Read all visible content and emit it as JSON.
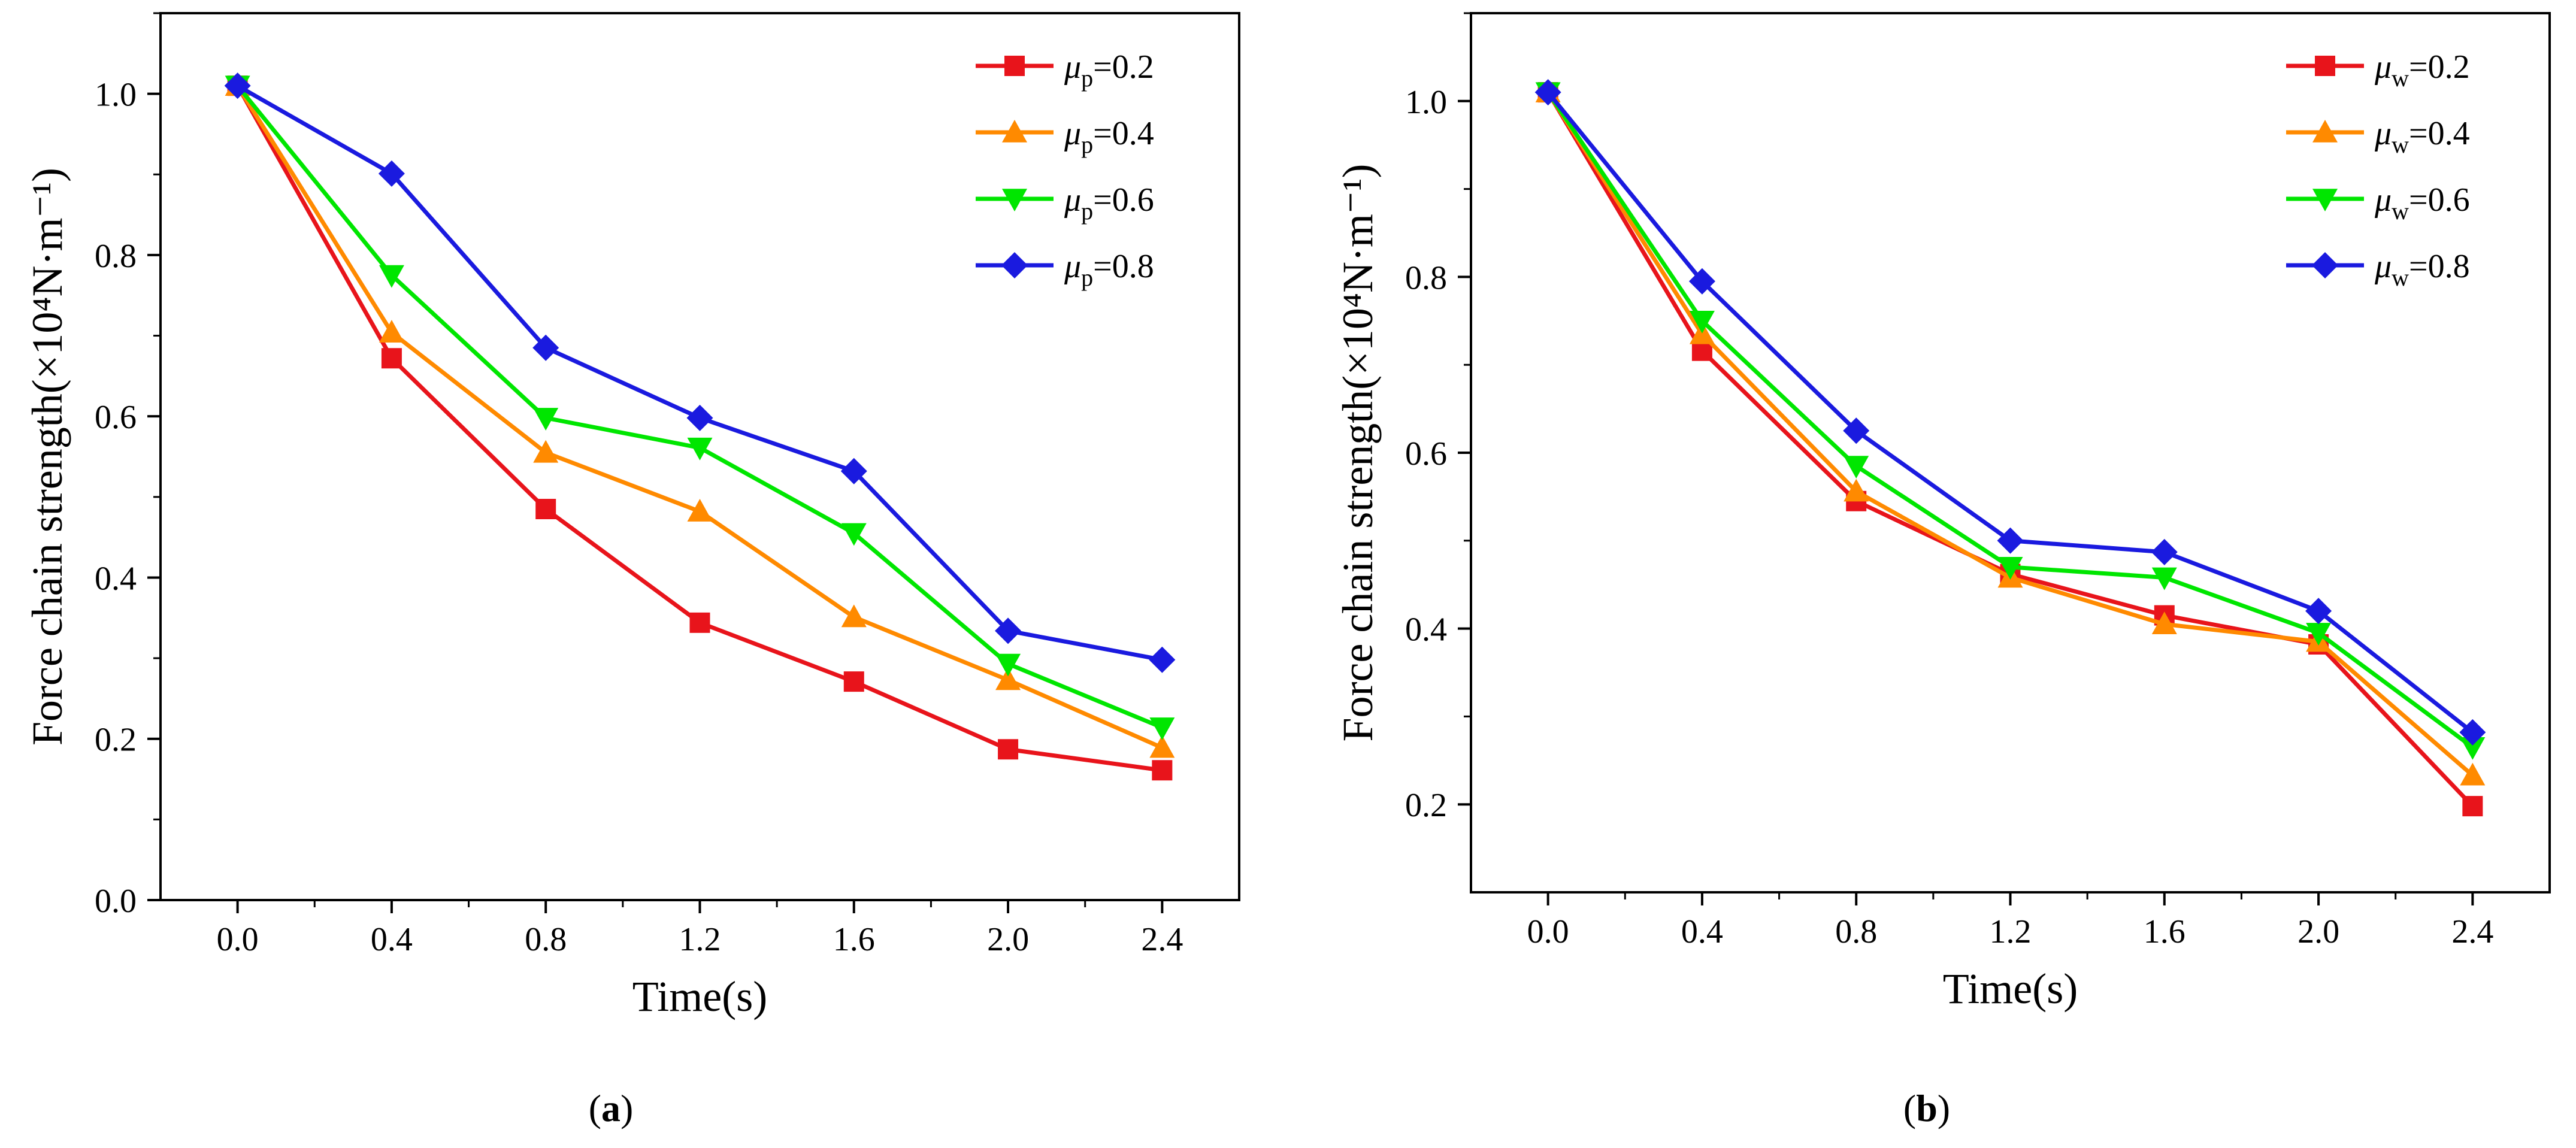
{
  "chart_data": [
    {
      "type": "line",
      "panel_label": "a",
      "xlabel": "Time(s)",
      "ylabel": "Force chain strength(×10⁴N·m⁻¹)",
      "x_ticks": [
        "0.0",
        "0.4",
        "0.8",
        "1.2",
        "1.6",
        "2.0",
        "2.4"
      ],
      "y_ticks": [
        "0.0",
        "0.2",
        "0.4",
        "0.6",
        "0.8",
        "1.0"
      ],
      "x": [
        0.0,
        0.4,
        0.8,
        1.2,
        1.6,
        2.0,
        2.4
      ],
      "xlim": [
        -0.2,
        2.6
      ],
      "ylim": [
        0.0,
        1.1
      ],
      "legend_position": "top-right",
      "grid": false,
      "series": [
        {
          "name": "μp=0.2",
          "symbol": "μ",
          "sub": "p",
          "value": "=0.2",
          "color": "#e8141b",
          "marker": "square",
          "values": [
            1.01,
            0.672,
            0.485,
            0.344,
            0.271,
            0.187,
            0.161
          ]
        },
        {
          "name": "μp=0.4",
          "symbol": "μ",
          "sub": "p",
          "value": "=0.4",
          "color": "#ff8a00",
          "marker": "triangle-up",
          "values": [
            1.01,
            0.704,
            0.555,
            0.482,
            0.351,
            0.273,
            0.189
          ]
        },
        {
          "name": "μp=0.6",
          "symbol": "μ",
          "sub": "p",
          "value": "=0.6",
          "color": "#00e600",
          "marker": "triangle-down",
          "values": [
            1.01,
            0.775,
            0.598,
            0.561,
            0.455,
            0.293,
            0.214
          ]
        },
        {
          "name": "μp=0.8",
          "symbol": "μ",
          "sub": "p",
          "value": "=0.8",
          "color": "#1a1adf",
          "marker": "diamond",
          "values": [
            1.01,
            0.901,
            0.685,
            0.598,
            0.532,
            0.334,
            0.298
          ]
        }
      ]
    },
    {
      "type": "line",
      "panel_label": "b",
      "xlabel": "Time(s)",
      "ylabel": "Force chain strength(×10⁴N·m⁻¹)",
      "x_ticks": [
        "0.0",
        "0.4",
        "0.8",
        "1.2",
        "1.6",
        "2.0",
        "2.4"
      ],
      "y_ticks": [
        "0.2",
        "0.4",
        "0.6",
        "0.8",
        "1.0"
      ],
      "x": [
        0.0,
        0.4,
        0.8,
        1.2,
        1.6,
        2.0,
        2.4
      ],
      "xlim": [
        -0.2,
        2.6
      ],
      "ylim": [
        0.1,
        1.1
      ],
      "legend_position": "top-right",
      "grid": false,
      "series": [
        {
          "name": "μw=0.2",
          "symbol": "μ",
          "sub": "w",
          "value": "=0.2",
          "color": "#e8141b",
          "marker": "square",
          "values": [
            1.01,
            0.716,
            0.545,
            0.462,
            0.415,
            0.382,
            0.198
          ]
        },
        {
          "name": "μw=0.4",
          "symbol": "μ",
          "sub": "w",
          "value": "=0.4",
          "color": "#ff8a00",
          "marker": "triangle-up",
          "values": [
            1.01,
            0.735,
            0.556,
            0.458,
            0.405,
            0.385,
            0.233
          ]
        },
        {
          "name": "μw=0.6",
          "symbol": "μ",
          "sub": "w",
          "value": "=0.6",
          "color": "#00e600",
          "marker": "triangle-down",
          "values": [
            1.01,
            0.75,
            0.585,
            0.47,
            0.458,
            0.395,
            0.265
          ]
        },
        {
          "name": "μw=0.8",
          "symbol": "μ",
          "sub": "w",
          "value": "=0.8",
          "color": "#1a1adf",
          "marker": "diamond",
          "values": [
            1.01,
            0.795,
            0.625,
            0.5,
            0.487,
            0.42,
            0.282
          ]
        }
      ]
    }
  ]
}
